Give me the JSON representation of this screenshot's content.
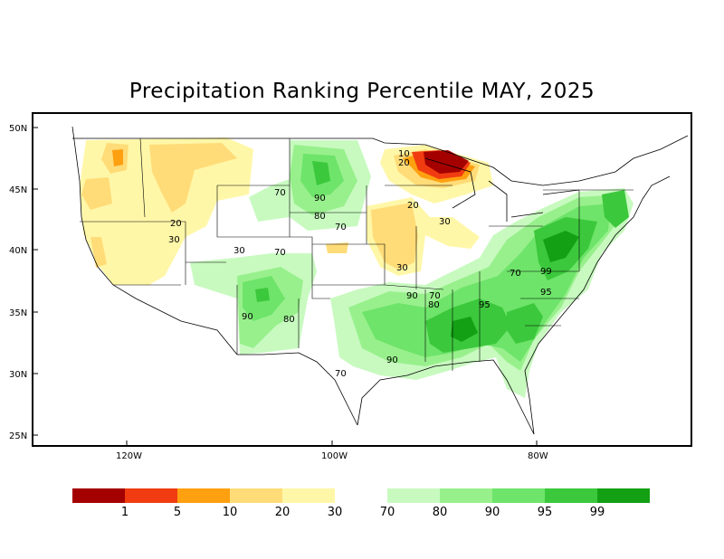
{
  "title": "Precipitation Ranking Percentile MAY, 2025",
  "axes": {
    "lat_labels": [
      "50N",
      "45N",
      "40N",
      "35N",
      "30N",
      "25N"
    ],
    "lon_labels": [
      "120W",
      "100W",
      "80W"
    ]
  },
  "contour_labels": [
    "10",
    "20",
    "20",
    "30",
    "20",
    "30",
    "30",
    "30",
    "70",
    "70",
    "70",
    "90",
    "80",
    "70",
    "90",
    "80",
    "90",
    "70",
    "80",
    "95",
    "99",
    "95",
    "90",
    "70"
  ],
  "legend": {
    "dry_colors": [
      "#a50000",
      "#f03c10",
      "#ffa010",
      "#ffdc78",
      "#fff7a8"
    ],
    "wet_colors": [
      "#c8fac0",
      "#98f08c",
      "#6ee46a",
      "#3cc83c",
      "#14a014"
    ],
    "dry_ticks": [
      "1",
      "5",
      "10",
      "20",
      "30"
    ],
    "wet_ticks": [
      "70",
      "80",
      "90",
      "95",
      "99"
    ]
  },
  "colors": {
    "dark_red": "#a50000",
    "red": "#f03c10",
    "orange": "#ffa010",
    "light_orange": "#ffdc78",
    "pale_yellow": "#fff7a8",
    "pale_green": "#c8fac0",
    "light_green": "#98f08c",
    "green": "#6ee46a",
    "mid_green": "#3cc83c",
    "dark_green": "#14a014"
  }
}
